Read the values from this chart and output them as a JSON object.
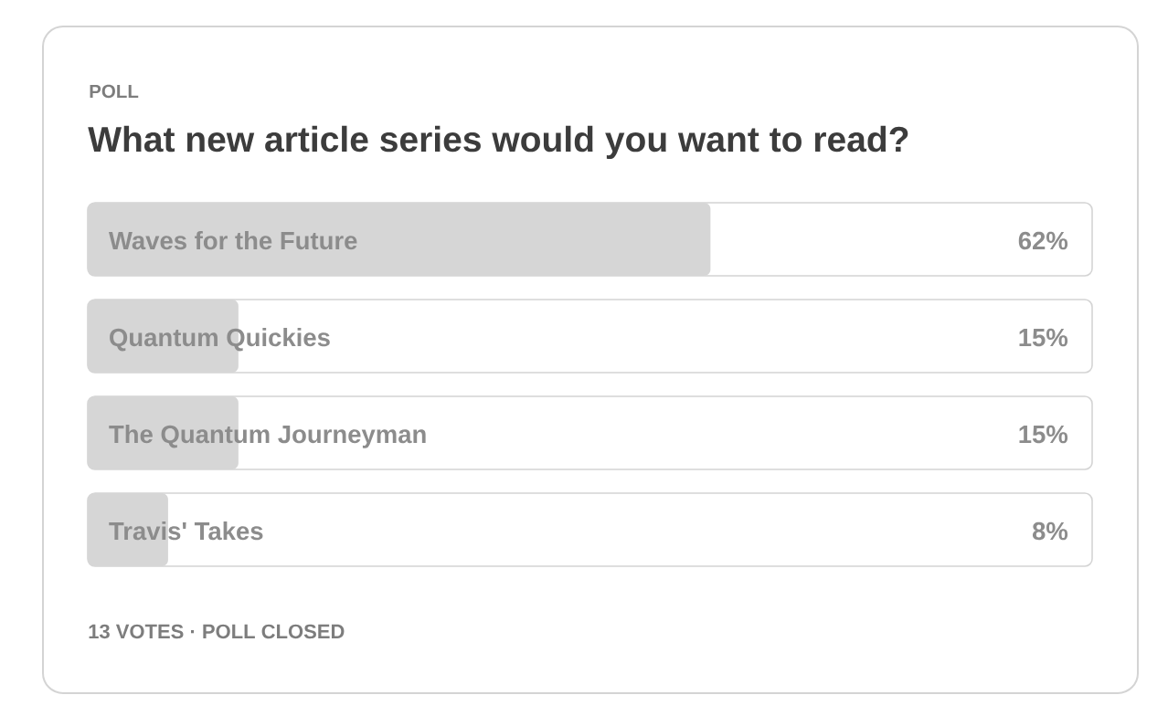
{
  "chart_data": {
    "type": "bar",
    "orientation": "horizontal",
    "subtitle": "POLL",
    "title": "What new article series would you want to read?",
    "categories": [
      "Waves for the Future",
      "Quantum Quickies",
      "The Quantum Journeyman",
      "Travis' Takes"
    ],
    "values": [
      62,
      15,
      15,
      8
    ],
    "value_labels": [
      "62%",
      "15%",
      "15%",
      "8%"
    ],
    "color": "#d6d6d6",
    "xlim": [
      0,
      100
    ],
    "tick_labels": "y",
    "annotations": [
      "13 VOTES · POLL CLOSED"
    ]
  }
}
